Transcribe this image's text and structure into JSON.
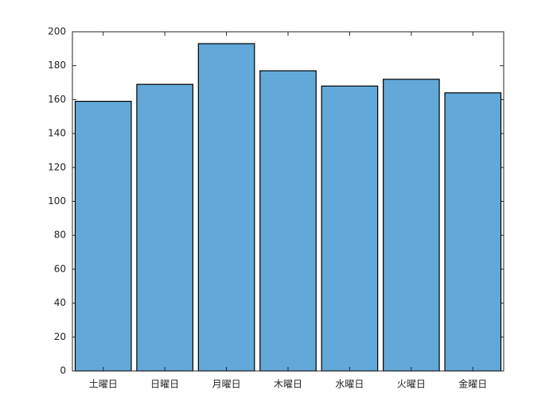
{
  "chart_data": {
    "type": "bar",
    "categories": [
      "土曜日",
      "日曜日",
      "月曜日",
      "木曜日",
      "水曜日",
      "火曜日",
      "金曜日"
    ],
    "values": [
      159,
      169,
      193,
      177,
      168,
      172,
      164
    ],
    "color": "#62a8d8",
    "ylim": [
      0,
      200
    ],
    "yticks": [
      0,
      20,
      40,
      60,
      80,
      100,
      120,
      140,
      160,
      180,
      200
    ],
    "grid": false
  }
}
